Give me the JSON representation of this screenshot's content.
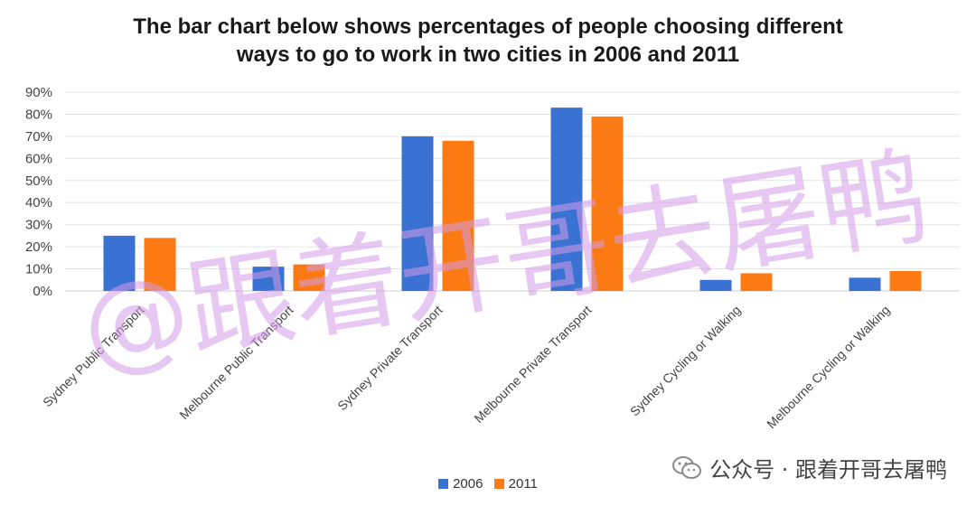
{
  "chart_data": {
    "type": "bar",
    "title_lines": [
      "The bar chart below shows percentages of people choosing different",
      "ways to go to work  in two cities in 2006 and 2011"
    ],
    "categories": [
      "Sydney Public Transport",
      "Melbourne Public Transport",
      "Sydney Private Transport",
      "Melbourne Private Transport",
      "Sydney Cycling or Walking",
      "Melbourne Cycling or Walking"
    ],
    "series": [
      {
        "name": "2006",
        "values": [
          25,
          11,
          70,
          83,
          5,
          6
        ]
      },
      {
        "name": "2011",
        "values": [
          24,
          12,
          68,
          79,
          8,
          9
        ]
      }
    ],
    "ylim": [
      0,
      90
    ],
    "yticks": [
      0,
      10,
      20,
      30,
      40,
      50,
      60,
      70,
      80,
      90
    ],
    "ytick_suffix": "%",
    "grid": true,
    "legend_position": "bottom",
    "colors": {
      "2006": "#3a72d3",
      "2011": "#fb7a14"
    }
  },
  "watermark": "@跟着开哥去屠鸭",
  "footer": {
    "text": "公众号 · 跟着开哥去屠鸭",
    "icon": "wechat-icon"
  }
}
